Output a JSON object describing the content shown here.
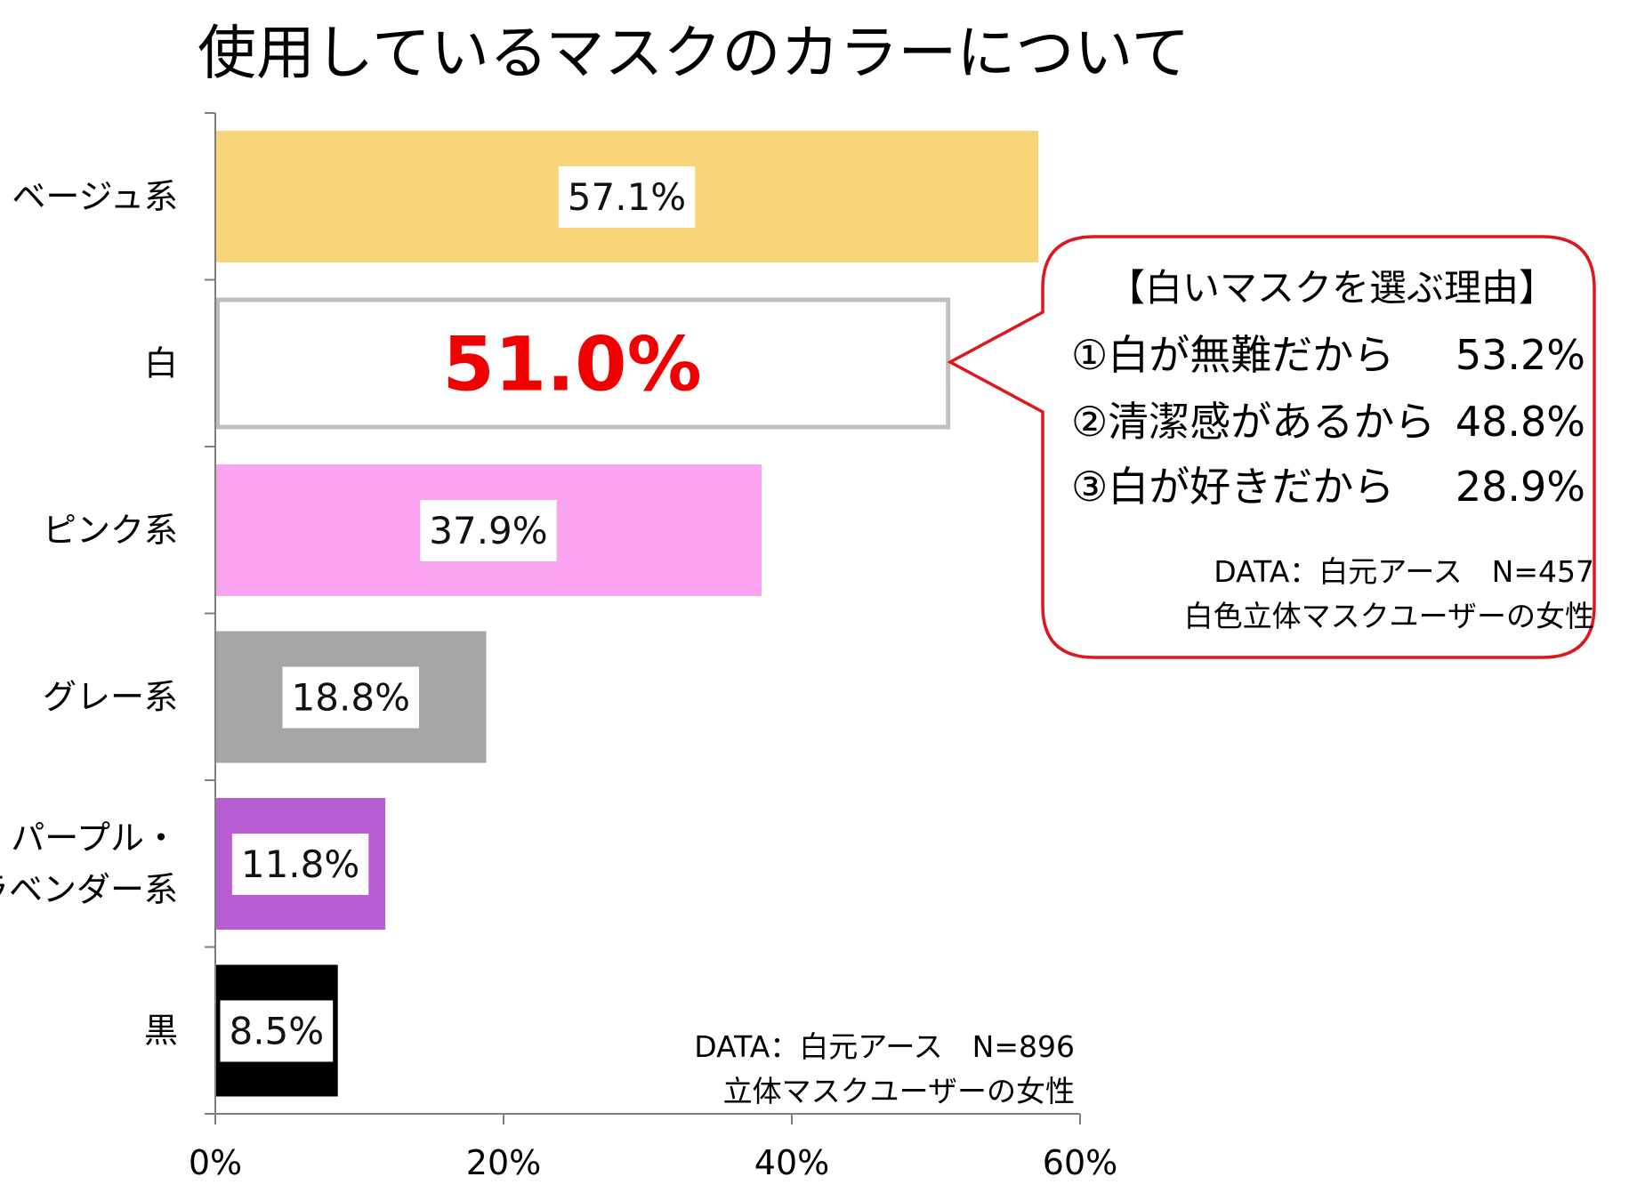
{
  "chart_data": {
    "type": "bar",
    "orientation": "horizontal",
    "title": "使用しているマスクのカラーについて",
    "categories": [
      "ベージュ系",
      "白",
      "ピンク系",
      "グレー系",
      "パープル・\nラベンダー系",
      "黒"
    ],
    "values": [
      57.1,
      51.0,
      37.9,
      18.8,
      11.8,
      8.5
    ],
    "value_labels": [
      "57.1%",
      "51.0%",
      "37.9%",
      "18.8%",
      "11.8%",
      "8.5%"
    ],
    "colors": [
      "#F9D57A",
      "#FFFFFF",
      "#F9A3F1",
      "#A6A6A6",
      "#B85CD3",
      "#000000"
    ],
    "highlight_index": 1,
    "highlight_label_color": "#F00000",
    "highlight_outline_color": "#BFBFBF",
    "xlim": [
      0,
      60
    ],
    "xticks": [
      0,
      20,
      40,
      60
    ],
    "xtick_labels": [
      "0%",
      "20%",
      "40%",
      "60%"
    ],
    "xlabel": "",
    "ylabel": "",
    "grid": false,
    "source_note": [
      "DATA：白元アース　N=896",
      "立体マスクユーザーの女性"
    ]
  },
  "callout": {
    "title": "【白いマスクを選ぶ理由】",
    "reasons": [
      {
        "label": "①白が無難だから",
        "value": "53.2%"
      },
      {
        "label": "②清潔感があるから",
        "value": "48.8%"
      },
      {
        "label": "③白が好きだから",
        "value": "28.9%"
      }
    ],
    "source_note": [
      "DATA：白元アース　N=457",
      "白色立体マスクユーザーの女性"
    ],
    "border_color": "#E0161E"
  }
}
